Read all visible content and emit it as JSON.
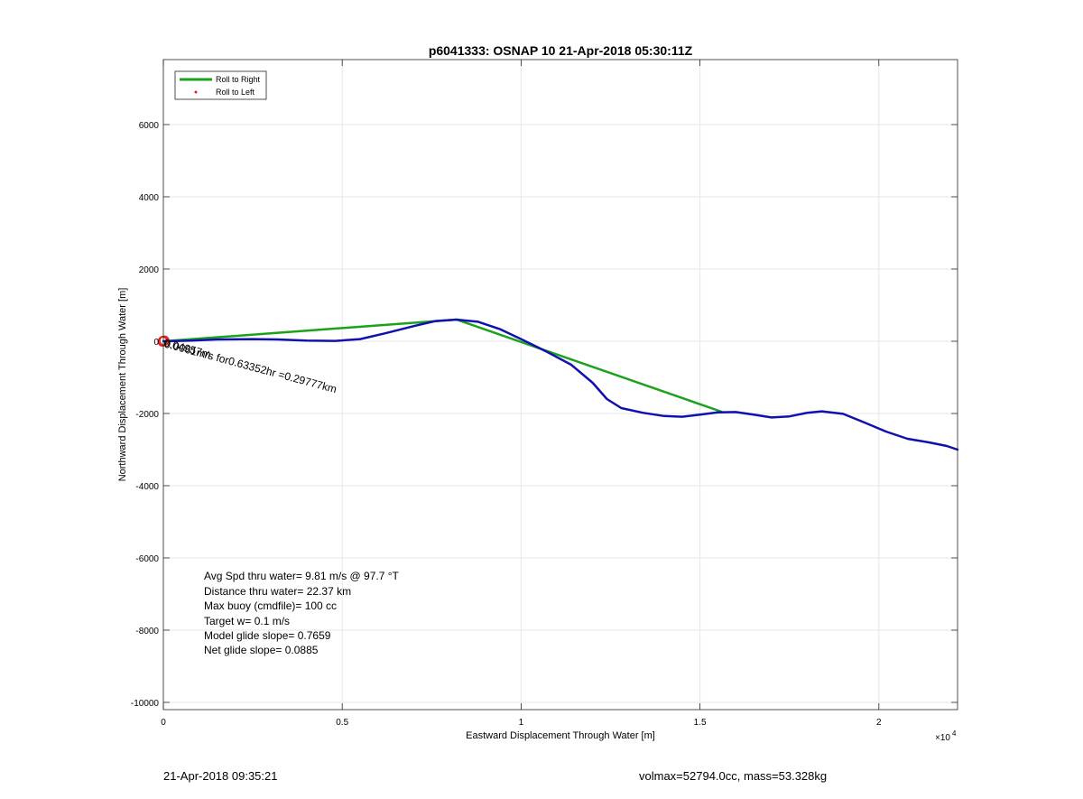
{
  "chart_data": {
    "type": "line",
    "title": "p6041333: OSNAP 10 21-Apr-2018 05:30:11Z",
    "xlabel": "Eastward Displacement Through Water [m]",
    "ylabel": "Northward Displacement Through Water [m]",
    "xlim": [
      0,
      22200
    ],
    "ylim": [
      -10200,
      7800
    ],
    "x_exponent_label": "×10",
    "x_exponent_power": "4",
    "grid": true,
    "legend_position": "top-left",
    "x_ticks": [
      {
        "value": 0,
        "label": "0"
      },
      {
        "value": 5000,
        "label": "0.5"
      },
      {
        "value": 10000,
        "label": "1"
      },
      {
        "value": 15000,
        "label": "1.5"
      },
      {
        "value": 20000,
        "label": "2"
      }
    ],
    "y_ticks": [
      {
        "value": 6000,
        "label": "6000"
      },
      {
        "value": 4000,
        "label": "4000"
      },
      {
        "value": 2000,
        "label": "2000"
      },
      {
        "value": 0,
        "label": "0"
      },
      {
        "value": -2000,
        "label": "-2000"
      },
      {
        "value": -4000,
        "label": "-4000"
      },
      {
        "value": -6000,
        "label": "-6000"
      },
      {
        "value": -8000,
        "label": "-8000"
      },
      {
        "value": -10000,
        "label": "-10000"
      }
    ],
    "legend": [
      {
        "label": "Roll to Right",
        "color": "#1aa31a",
        "style": "line"
      },
      {
        "label": "Roll to Left",
        "color": "#e02020",
        "style": "dot"
      }
    ],
    "series": [
      {
        "name": "Roll to Right",
        "color": "#1aa31a",
        "points": [
          [
            0,
            0
          ],
          [
            8200,
            600
          ],
          [
            15600,
            -1950
          ]
        ]
      },
      {
        "color": "#1010b0",
        "points": [
          [
            0,
            0
          ],
          [
            800,
            20
          ],
          [
            1500,
            50
          ],
          [
            2500,
            60
          ],
          [
            3200,
            50
          ],
          [
            4000,
            20
          ],
          [
            4800,
            10
          ],
          [
            5500,
            60
          ],
          [
            6200,
            220
          ],
          [
            7000,
            420
          ],
          [
            7600,
            560
          ],
          [
            8200,
            600
          ],
          [
            8800,
            540
          ],
          [
            9400,
            340
          ],
          [
            10000,
            60
          ],
          [
            10700,
            -280
          ],
          [
            11400,
            -650
          ],
          [
            12000,
            -1150
          ],
          [
            12400,
            -1600
          ],
          [
            12800,
            -1850
          ],
          [
            13400,
            -1980
          ],
          [
            14000,
            -2070
          ],
          [
            14500,
            -2090
          ],
          [
            15000,
            -2030
          ],
          [
            15500,
            -1970
          ],
          [
            16000,
            -1960
          ],
          [
            16500,
            -2030
          ],
          [
            17000,
            -2110
          ],
          [
            17500,
            -2080
          ],
          [
            18000,
            -1980
          ],
          [
            18400,
            -1940
          ],
          [
            19000,
            -2010
          ],
          [
            19600,
            -2250
          ],
          [
            20200,
            -2500
          ],
          [
            20800,
            -2700
          ],
          [
            21400,
            -2800
          ],
          [
            21900,
            -2900
          ],
          [
            22200,
            -3000
          ]
        ]
      }
    ],
    "markers": {
      "red_circles": [
        [
          -20,
          -10
        ],
        [
          0,
          0
        ],
        [
          30,
          20
        ],
        [
          -10,
          10
        ]
      ],
      "color": "#e02020"
    },
    "rotated_annotation": {
      "text": "0.0061m/s for0.63352hr =0.29777km",
      "overlap_text": "0.04957m",
      "anchor": [
        0,
        0
      ],
      "angle_deg": 15
    },
    "stats_lines": [
      "Avg Spd thru water=  9.81 m/s @  97.7 °T",
      "Distance thru water= 22.37 km",
      "Max buoy (cmdfile)= 100 cc",
      "Target w= 0.1 m/s",
      "Model glide slope= 0.7659",
      "Net glide slope= 0.0885"
    ]
  },
  "footer": {
    "timestamp": "21-Apr-2018 09:35:21",
    "vol_mass": "volmax=52794.0cc, mass=53.328kg"
  }
}
